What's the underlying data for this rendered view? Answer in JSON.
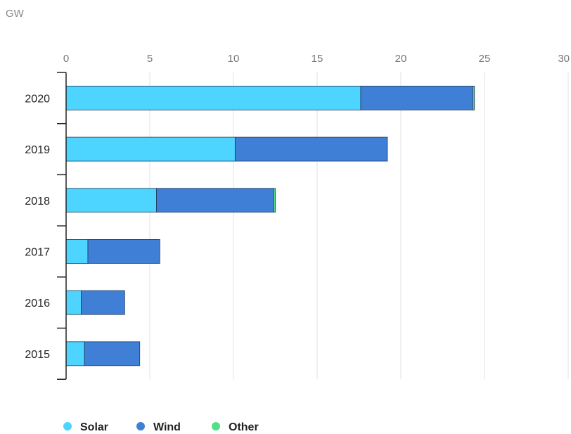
{
  "chart_data": {
    "type": "bar",
    "orientation": "horizontal",
    "stacked": true,
    "unit_label": "GW",
    "categories": [
      "2020",
      "2019",
      "2018",
      "2017",
      "2016",
      "2015"
    ],
    "series": [
      {
        "name": "Solar",
        "color": "#4dd4ff",
        "values": [
          17.6,
          10.1,
          5.4,
          1.3,
          0.9,
          1.1
        ]
      },
      {
        "name": "Wind",
        "color": "#3f7fd6",
        "values": [
          6.7,
          9.1,
          7.0,
          4.3,
          2.6,
          3.3
        ]
      },
      {
        "name": "Other",
        "color": "#4fe08a",
        "values": [
          0.1,
          0.0,
          0.1,
          0.0,
          0.0,
          0.0
        ]
      }
    ],
    "xlim": [
      0,
      30
    ],
    "xticks": [
      "0",
      "5",
      "10",
      "15",
      "20",
      "25",
      "30"
    ],
    "grid": true,
    "legend_position": "bottom-left"
  }
}
